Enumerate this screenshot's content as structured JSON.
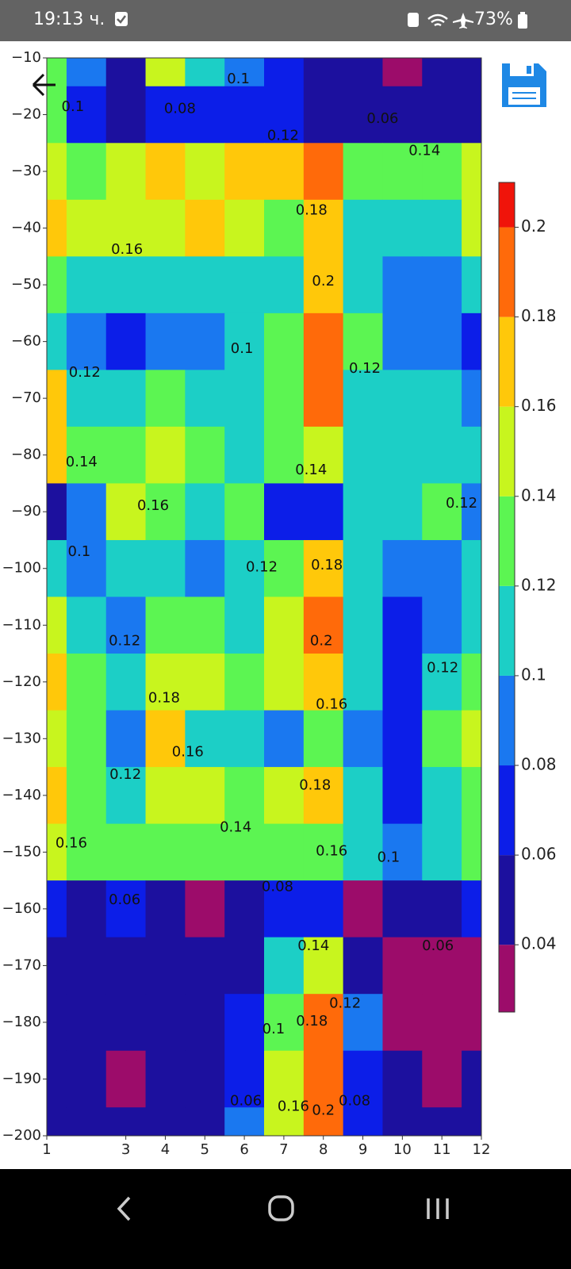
{
  "status_bar": {
    "time": "19:13 ч.",
    "battery": "73%"
  },
  "chart_data": {
    "type": "contour",
    "x": [
      1,
      2,
      3,
      4,
      5,
      6,
      7,
      8,
      9,
      10,
      11,
      12
    ],
    "y": [
      -10,
      -20,
      -30,
      -40,
      -50,
      -60,
      -70,
      -80,
      -90,
      -100,
      -110,
      -120,
      -130,
      -140,
      -150,
      -160,
      -170,
      -180,
      -190,
      -200
    ],
    "z": [
      [
        0.14,
        0.1,
        0.06,
        0.16,
        0.12,
        0.1,
        0.08,
        0.06,
        0.06,
        0.04,
        0.06,
        0.06
      ],
      [
        0.14,
        0.08,
        0.06,
        0.08,
        0.08,
        0.08,
        0.08,
        0.06,
        0.06,
        0.06,
        0.06,
        0.06
      ],
      [
        0.16,
        0.14,
        0.16,
        0.18,
        0.16,
        0.18,
        0.18,
        0.2,
        0.14,
        0.14,
        0.14,
        0.16
      ],
      [
        0.18,
        0.16,
        0.16,
        0.16,
        0.18,
        0.16,
        0.14,
        0.18,
        0.12,
        0.12,
        0.12,
        0.16
      ],
      [
        0.14,
        0.12,
        0.12,
        0.12,
        0.12,
        0.12,
        0.12,
        0.18,
        0.12,
        0.1,
        0.1,
        0.12
      ],
      [
        0.12,
        0.1,
        0.08,
        0.1,
        0.1,
        0.12,
        0.14,
        0.2,
        0.14,
        0.1,
        0.1,
        0.08
      ],
      [
        0.18,
        0.12,
        0.12,
        0.14,
        0.12,
        0.12,
        0.14,
        0.19,
        0.12,
        0.12,
        0.12,
        0.1
      ],
      [
        0.18,
        0.14,
        0.14,
        0.16,
        0.14,
        0.12,
        0.14,
        0.16,
        0.12,
        0.12,
        0.12,
        0.12
      ],
      [
        0.06,
        0.1,
        0.16,
        0.14,
        0.12,
        0.14,
        0.08,
        0.08,
        0.12,
        0.12,
        0.14,
        0.1
      ],
      [
        0.12,
        0.1,
        0.12,
        0.12,
        0.1,
        0.12,
        0.14,
        0.18,
        0.12,
        0.1,
        0.1,
        0.12
      ],
      [
        0.16,
        0.12,
        0.1,
        0.14,
        0.14,
        0.12,
        0.16,
        0.2,
        0.12,
        0.08,
        0.1,
        0.12
      ],
      [
        0.18,
        0.14,
        0.12,
        0.16,
        0.16,
        0.14,
        0.16,
        0.18,
        0.12,
        0.08,
        0.12,
        0.14
      ],
      [
        0.16,
        0.14,
        0.1,
        0.18,
        0.12,
        0.12,
        0.1,
        0.14,
        0.1,
        0.08,
        0.14,
        0.16
      ],
      [
        0.18,
        0.14,
        0.12,
        0.16,
        0.16,
        0.14,
        0.16,
        0.18,
        0.12,
        0.08,
        0.12,
        0.14
      ],
      [
        0.16,
        0.14,
        0.14,
        0.14,
        0.14,
        0.14,
        0.14,
        0.14,
        0.12,
        0.1,
        0.12,
        0.14
      ],
      [
        0.08,
        0.06,
        0.08,
        0.06,
        0.04,
        0.06,
        0.08,
        0.08,
        0.04,
        0.06,
        0.06,
        0.08
      ],
      [
        0.06,
        0.06,
        0.06,
        0.06,
        0.06,
        0.06,
        0.12,
        0.16,
        0.06,
        0.04,
        0.04,
        0.04
      ],
      [
        0.06,
        0.06,
        0.06,
        0.06,
        0.06,
        0.08,
        0.14,
        0.2,
        0.1,
        0.04,
        0.04,
        0.04
      ],
      [
        0.06,
        0.06,
        0.04,
        0.06,
        0.06,
        0.08,
        0.16,
        0.2,
        0.08,
        0.06,
        0.04,
        0.06
      ],
      [
        0.06,
        0.06,
        0.06,
        0.06,
        0.06,
        0.1,
        0.16,
        0.2,
        0.08,
        0.06,
        0.06,
        0.06
      ]
    ],
    "xlim": [
      1,
      12
    ],
    "ylim": [
      -200,
      -10
    ],
    "xticks": [
      1,
      3,
      4,
      5,
      6,
      7,
      8,
      9,
      10,
      11,
      12
    ],
    "yticks": [
      {
        "value": -10,
        "label": "−10"
      },
      {
        "value": -20,
        "label": "−20"
      },
      {
        "value": -30,
        "label": "−30"
      },
      {
        "value": -40,
        "label": "−40"
      },
      {
        "value": -50,
        "label": "−50"
      },
      {
        "value": -60,
        "label": "−60"
      },
      {
        "value": -70,
        "label": "−70"
      },
      {
        "value": -80,
        "label": "−80"
      },
      {
        "value": -90,
        "label": "−90"
      },
      {
        "value": -100,
        "label": "−100"
      },
      {
        "value": -110,
        "label": "−110"
      },
      {
        "value": -120,
        "label": "−120"
      },
      {
        "value": -130,
        "label": "−130"
      },
      {
        "value": -140,
        "label": "−140"
      },
      {
        "value": -150,
        "label": "−150"
      },
      {
        "value": -160,
        "label": "−160"
      },
      {
        "value": -170,
        "label": "−170"
      },
      {
        "value": -180,
        "label": "−180"
      },
      {
        "value": -190,
        "label": "−190"
      },
      {
        "value": -200,
        "label": "−200"
      }
    ],
    "levels": [
      0.025,
      0.04,
      0.06,
      0.08,
      0.1,
      0.12,
      0.14,
      0.16,
      0.18,
      0.2,
      0.21
    ],
    "colors": [
      "#9c0c6a",
      "#1c109e",
      "#0c1ee8",
      "#1a78f0",
      "#1ccfc6",
      "#5cf552",
      "#c8f51e",
      "#ffc80a",
      "#ff6a0a",
      "#f0140a"
    ],
    "clim": [
      0.025,
      0.21
    ],
    "cticks": [
      0.04,
      0.06,
      0.08,
      0.1,
      0.12,
      0.14,
      0.16,
      0.18,
      0.2
    ],
    "contour_labels": [
      {
        "x": 5.85,
        "y": -13.8,
        "label": "0.1"
      },
      {
        "x": 4.37,
        "y": -19,
        "label": "0.08"
      },
      {
        "x": 9.5,
        "y": -20.8,
        "label": "0.06"
      },
      {
        "x": 1.66,
        "y": -18.7,
        "label": "0.1"
      },
      {
        "x": 6.98,
        "y": -23.8,
        "label": "0.12"
      },
      {
        "x": 10.56,
        "y": -26.4,
        "label": "0.14"
      },
      {
        "x": 7.7,
        "y": -36.9,
        "label": "0.18"
      },
      {
        "x": 3.03,
        "y": -43.8,
        "label": "0.16"
      },
      {
        "x": 8.0,
        "y": -49.4,
        "label": "0.2"
      },
      {
        "x": 5.94,
        "y": -61.3,
        "label": "0.1"
      },
      {
        "x": 1.96,
        "y": -65.5,
        "label": "0.12"
      },
      {
        "x": 9.05,
        "y": -64.8,
        "label": "0.12"
      },
      {
        "x": 1.88,
        "y": -81.3,
        "label": "0.14"
      },
      {
        "x": 7.69,
        "y": -82.7,
        "label": "0.14"
      },
      {
        "x": 3.69,
        "y": -89,
        "label": "0.16"
      },
      {
        "x": 11.5,
        "y": -88.6,
        "label": "0.12"
      },
      {
        "x": 1.82,
        "y": -97.1,
        "label": "0.1"
      },
      {
        "x": 6.44,
        "y": -99.8,
        "label": "0.12"
      },
      {
        "x": 8.09,
        "y": -99.5,
        "label": "0.18"
      },
      {
        "x": 7.95,
        "y": -112.8,
        "label": "0.2"
      },
      {
        "x": 2.97,
        "y": -112.8,
        "label": "0.12"
      },
      {
        "x": 11.02,
        "y": -117.6,
        "label": "0.12"
      },
      {
        "x": 3.97,
        "y": -122.9,
        "label": "0.18"
      },
      {
        "x": 8.21,
        "y": -124,
        "label": "0.16"
      },
      {
        "x": 4.57,
        "y": -132.4,
        "label": "0.16"
      },
      {
        "x": 2.99,
        "y": -136.4,
        "label": "0.12"
      },
      {
        "x": 7.79,
        "y": -138.3,
        "label": "0.18"
      },
      {
        "x": 5.78,
        "y": -145.7,
        "label": "0.14"
      },
      {
        "x": 1.62,
        "y": -148.5,
        "label": "0.16"
      },
      {
        "x": 8.21,
        "y": -149.9,
        "label": "0.16"
      },
      {
        "x": 9.65,
        "y": -151,
        "label": "0.1"
      },
      {
        "x": 6.84,
        "y": -156.2,
        "label": "0.08"
      },
      {
        "x": 2.97,
        "y": -158.5,
        "label": "0.06"
      },
      {
        "x": 10.9,
        "y": -166.6,
        "label": "0.06"
      },
      {
        "x": 7.75,
        "y": -166.6,
        "label": "0.14"
      },
      {
        "x": 6.74,
        "y": -181.3,
        "label": "0.1"
      },
      {
        "x": 7.71,
        "y": -179.9,
        "label": "0.18"
      },
      {
        "x": 8.55,
        "y": -176.7,
        "label": "0.12"
      },
      {
        "x": 6.04,
        "y": -193.9,
        "label": "0.06"
      },
      {
        "x": 7.24,
        "y": -194.9,
        "label": "0.16"
      },
      {
        "x": 8.0,
        "y": -195.6,
        "label": "0.2"
      },
      {
        "x": 8.79,
        "y": -193.9,
        "label": "0.08"
      }
    ]
  }
}
